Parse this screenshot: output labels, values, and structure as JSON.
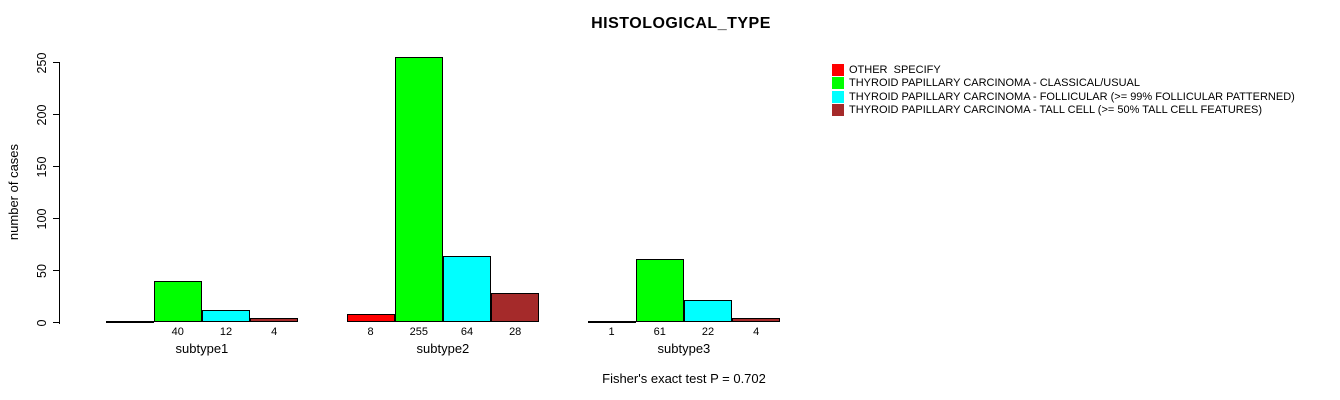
{
  "chart_data": {
    "type": "bar",
    "title": "HISTOLOGICAL_TYPE",
    "ylabel": "number of cases",
    "xlabel": "",
    "ylim": [
      0,
      250
    ],
    "yticks": [
      0,
      50,
      100,
      150,
      200,
      250
    ],
    "grid": false,
    "legend_position": "right-of-plot",
    "categories": [
      "subtype1",
      "subtype2",
      "subtype3"
    ],
    "series": [
      {
        "name": "OTHER  SPECIFY",
        "color": "#ff0000",
        "values": [
          0,
          8,
          1
        ]
      },
      {
        "name": "THYROID PAPILLARY CARCINOMA - CLASSICAL/USUAL",
        "color": "#00ff00",
        "values": [
          40,
          255,
          61
        ]
      },
      {
        "name": "THYROID PAPILLARY CARCINOMA - FOLLICULAR (>= 99% FOLLICULAR PATTERNED)",
        "color": "#00ffff",
        "values": [
          12,
          64,
          22
        ]
      },
      {
        "name": "THYROID PAPILLARY CARCINOMA - TALL CELL (>= 50% TALL CELL FEATURES)",
        "color": "#a52a2a",
        "values": [
          4,
          28,
          4
        ]
      }
    ],
    "bar_value_labels_shown_only_when_positive": true,
    "footnote": "Fisher's exact test P = 0.702"
  },
  "colors": {
    "background": "#ffffff",
    "axis": "#000000",
    "bar_border": "#000000",
    "text": "#000000"
  }
}
